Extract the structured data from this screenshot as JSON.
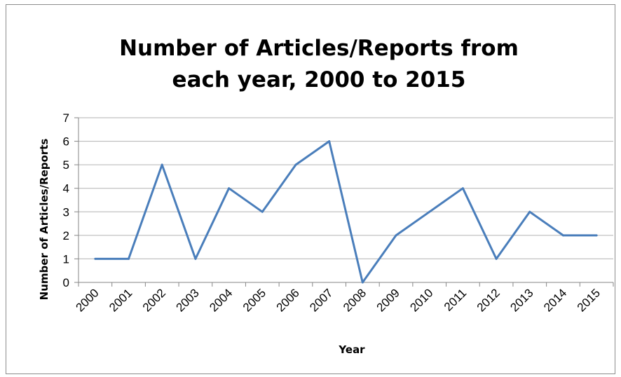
{
  "chart_data": {
    "type": "line",
    "title": [
      "Number of Articles/Reports from",
      "each year, 2000 to 2015"
    ],
    "xlabel": "Year",
    "ylabel": "Number of Articles/Reports",
    "categories": [
      "2000",
      "2001",
      "2002",
      "2003",
      "2004",
      "2005",
      "2006",
      "2007",
      "2008",
      "2009",
      "2010",
      "2011",
      "2012",
      "2013",
      "2014",
      "2015"
    ],
    "values": [
      1,
      1,
      5,
      1,
      4,
      3,
      5,
      6,
      0,
      2,
      3,
      4,
      1,
      3,
      2,
      2
    ],
    "ylim": [
      0,
      7
    ],
    "yticks": [
      "0",
      "1",
      "2",
      "3",
      "4",
      "5",
      "6",
      "7"
    ],
    "grid": true,
    "legend": "none",
    "line_color": "#4a7ebb"
  }
}
